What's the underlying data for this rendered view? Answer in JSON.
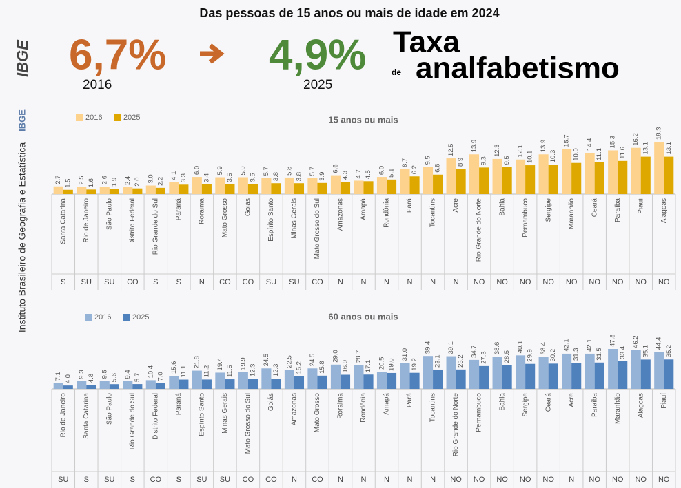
{
  "header": {
    "title": "Das pessoas de 15 anos ou mais de idade em 2024",
    "rate_before": "6,7%",
    "year_before": "2016",
    "rate_after": "4,9%",
    "year_after": "2025",
    "word_taxa": "Taxa",
    "word_de": "de",
    "word_analfabetismo": "analfabetismo",
    "institute": "Instituto Brasileiro de Geografia e Estatística",
    "institute_short": "IBGE",
    "logo": "IBGE"
  },
  "chart_data": [
    {
      "type": "bar",
      "subtitle": "15 anos ou mais",
      "categories": [
        "Santa Catarina",
        "Rio de Janeiro",
        "São Paulo",
        "Distrito Federal",
        "Rio Grande do Sul",
        "Paraná",
        "Roraima",
        "Mato Grosso",
        "Goiás",
        "Espírito Santo",
        "Minas Gerais",
        "Mato Grosso do Sul",
        "Amazonas",
        "Amapá",
        "Rondônia",
        "Pará",
        "Tocantins",
        "Acre",
        "Rio Grande do Norte",
        "Bahia",
        "Pernambuco",
        "Sergipe",
        "Maranhão",
        "Ceará",
        "Paraíba",
        "Piauí",
        "Alagoas"
      ],
      "regions": [
        "S",
        "SU",
        "SU",
        "CO",
        "S",
        "S",
        "N",
        "CO",
        "CO",
        "SU",
        "SU",
        "CO",
        "N",
        "N",
        "N",
        "N",
        "N",
        "N",
        "NO",
        "NO",
        "NO",
        "NO",
        "NO",
        "NO",
        "NO",
        "NO",
        "NO"
      ],
      "series": [
        {
          "name": "2016",
          "color": "#fcd28c",
          "values": [
            2.7,
            2.5,
            2.6,
            2.4,
            3.0,
            4.1,
            6.0,
            5.9,
            5.9,
            5.7,
            5.8,
            5.7,
            6.6,
            4.7,
            6.0,
            8.7,
            9.5,
            12.5,
            13.9,
            12.3,
            12.1,
            13.9,
            15.7,
            14.4,
            15.3,
            16.2,
            18.3
          ],
          "value_labels": [
            "2.7",
            "2.5",
            "2.6",
            "2.4",
            "3.0",
            "4.1",
            "6.0",
            "5.9",
            "5.9",
            "5.7",
            "5.8",
            "5.7",
            "6.6",
            "4.7",
            "6.0",
            "8.7",
            "9.5",
            "12.5",
            "13.9",
            "12.3",
            "12.1",
            "13.9",
            "15.7",
            "14.4",
            "15.3",
            "16.2",
            "18.3"
          ]
        },
        {
          "name": "2025",
          "color": "#dfa800",
          "values": [
            1.5,
            1.6,
            1.9,
            2.0,
            2.2,
            3.3,
            3.4,
            3.5,
            3.5,
            3.8,
            3.8,
            3.9,
            4.3,
            4.5,
            5.1,
            6.2,
            6.8,
            8.9,
            9.3,
            9.5,
            10.1,
            10.3,
            10.9,
            11.1,
            11.6,
            13.1,
            13.1
          ],
          "value_labels": [
            "1.5",
            "1.6",
            "1.9",
            "2.0",
            "2.2",
            "3.3",
            "3.4",
            "3.5",
            "3.5",
            "3.8",
            "3.8",
            "3.9",
            "4.3",
            "4.5",
            "5.1",
            "6.2",
            "6.8",
            "8.9",
            "9.3",
            "9.5",
            "10.1",
            "10.3",
            "10.9",
            "11.1",
            "11.6",
            "13.1",
            "13.1"
          ]
        }
      ]
    },
    {
      "type": "bar",
      "subtitle": "60 anos ou mais",
      "categories": [
        "Rio de Janeiro",
        "Santa Catarina",
        "São Paulo",
        "Rio Grande do Sul",
        "Distrito Federal",
        "Paraná",
        "Espírito Santo",
        "Minas Gerais",
        "Mato Grosso do Sul",
        "Goiás",
        "Amazonas",
        "Mato Grosso",
        "Roraima",
        "Rondônia",
        "Amapá",
        "Pará",
        "Tocantins",
        "Rio Grande do Norte",
        "Pernambuco",
        "Bahia",
        "Sergipe",
        "Ceará",
        "Acre",
        "Paraíba",
        "Maranhão",
        "Alagoas",
        "Piauí"
      ],
      "regions": [
        "SU",
        "S",
        "SU",
        "S",
        "CO",
        "S",
        "SU",
        "SU",
        "CO",
        "CO",
        "N",
        "CO",
        "N",
        "N",
        "N",
        "N",
        "N",
        "NO",
        "NO",
        "NO",
        "NO",
        "NO",
        "N",
        "NO",
        "NO",
        "NO",
        "NO"
      ],
      "series": [
        {
          "name": "2016",
          "color": "#95b3d7",
          "values": [
            7.1,
            9.3,
            9.5,
            9.4,
            10.4,
            15.6,
            21.8,
            19.4,
            19.9,
            24.5,
            22.5,
            24.5,
            29.0,
            28.7,
            20.5,
            31.0,
            39.4,
            39.1,
            34.7,
            38.6,
            40.1,
            38.4,
            42.1,
            42.1,
            47.8,
            46.2,
            44.4
          ],
          "value_labels": [
            "7.1",
            "9.3",
            "9.5",
            "9.4",
            "10.4",
            "15.6",
            "21.8",
            "19.4",
            "19.9",
            "24.5",
            "22.5",
            "24.5",
            "29.0",
            "28.7",
            "20.5",
            "31.0",
            "39.4",
            "39.1",
            "34.7",
            "38.6",
            "40.1",
            "38.4",
            "42.1",
            "42.1",
            "47.8",
            "46.2",
            "44.4"
          ]
        },
        {
          "name": "2025",
          "color": "#4f81bd",
          "values": [
            4.0,
            4.8,
            5.6,
            5.7,
            7.0,
            11.1,
            11.2,
            11.5,
            12.3,
            12.3,
            15.2,
            15.8,
            16.9,
            17.1,
            19.0,
            19.2,
            23.1,
            23.2,
            27.3,
            28.5,
            29.9,
            30.2,
            31.3,
            31.5,
            33.4,
            35.1,
            35.2
          ],
          "value_labels": [
            "4.0",
            "4.8",
            "5.6",
            "5.7",
            "7.0",
            "11.1",
            "11.2",
            "11.5",
            "12.3",
            "12.3",
            "15.2",
            "15.8",
            "16.9",
            "17.1",
            "19.0",
            "19.2",
            "23.1",
            "23.2",
            "27.3",
            "28.5",
            "29.9",
            "30.2",
            "31.3",
            "31.5",
            "33.4",
            "35.1",
            "35.2"
          ]
        }
      ]
    }
  ]
}
